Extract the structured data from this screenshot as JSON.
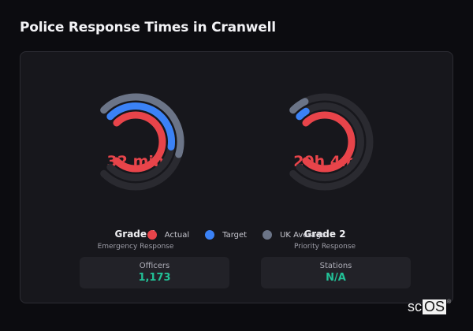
{
  "page": {
    "title": "Police Response Times in Cranwell"
  },
  "colors": {
    "actual": "#e8444a",
    "target": "#3b82f6",
    "uk_average": "#6b7487",
    "track": "#2a2a30",
    "stat_value": "#22c197",
    "background": "#0c0c10",
    "card": "#17171c"
  },
  "gauges": [
    {
      "name": "Grade 1",
      "description": "Emergency Response",
      "value_text": "32 min",
      "value_label": "Actual"
    },
    {
      "name": "Grade 2",
      "description": "Priority Response",
      "value_text": "20h 4m",
      "value_label": "Actual"
    }
  ],
  "legend": [
    {
      "label": "Actual",
      "color": "#e8444a"
    },
    {
      "label": "Target",
      "color": "#3b82f6"
    },
    {
      "label": "UK Average",
      "color": "#6b7487"
    }
  ],
  "stats": [
    {
      "label": "Officers",
      "value": "1,173"
    },
    {
      "label": "Stations",
      "value": "N/A"
    }
  ],
  "logo": {
    "part1": "sc",
    "part2": "OS",
    "mark": "®"
  },
  "chart_data": [
    {
      "type": "radial-bar",
      "title": "Grade 1",
      "subtitle": "Emergency Response",
      "center_label": "32 min",
      "center_sublabel": "Actual",
      "sweep_degrees": 270,
      "start": "top-left",
      "direction": "clockwise",
      "series": [
        {
          "name": "UK Average",
          "ring": "outer",
          "fraction_of_sweep": 0.56
        },
        {
          "name": "Target",
          "ring": "middle",
          "fraction_of_sweep": 0.53
        },
        {
          "name": "Actual",
          "ring": "inner",
          "fraction_of_sweep": 1.0,
          "value": "32 min"
        }
      ]
    },
    {
      "type": "radial-bar",
      "title": "Grade 2",
      "subtitle": "Priority Response",
      "center_label": "20h 4m",
      "center_sublabel": "Actual",
      "sweep_degrees": 270,
      "start": "top-left",
      "direction": "clockwise",
      "series": [
        {
          "name": "UK Average",
          "ring": "outer",
          "fraction_of_sweep": 0.07
        },
        {
          "name": "Target",
          "ring": "middle",
          "fraction_of_sweep": 0.05
        },
        {
          "name": "Actual",
          "ring": "inner",
          "fraction_of_sweep": 1.0,
          "value": "20h 4m"
        }
      ]
    }
  ]
}
